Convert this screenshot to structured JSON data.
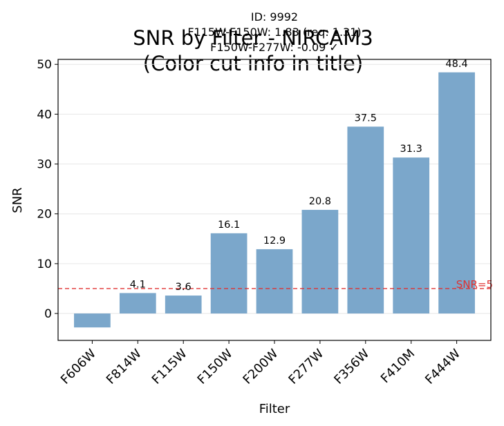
{
  "header": {
    "id_line": "ID: 9992",
    "cut_line_1": "F115W-F150W: 1.83 (req: 1.31)",
    "cut_line_2": "F150W-F277W: -0.09 ✓"
  },
  "chart_data": {
    "type": "bar",
    "title": "SNR by Filter - NIRCAM3\n(Color cut info in title)",
    "title_lines": [
      "SNR by Filter - NIRCAM3",
      "(Color cut info in title)"
    ],
    "xlabel": "Filter",
    "ylabel": "SNR",
    "categories": [
      "F606W",
      "F814W",
      "F115W",
      "F150W",
      "F200W",
      "F277W",
      "F356W",
      "F410M",
      "F444W"
    ],
    "values": [
      -2.8,
      4.1,
      3.6,
      16.1,
      12.9,
      20.8,
      37.5,
      31.3,
      48.4
    ],
    "value_labels": [
      "",
      "4.1",
      "3.6",
      "16.1",
      "12.9",
      "20.8",
      "37.5",
      "31.3",
      "48.4"
    ],
    "ylim": [
      -5.4,
      51.0
    ],
    "yticks": [
      0,
      10,
      20,
      30,
      40,
      50
    ],
    "grid": "y",
    "bar_color": "#7ba7cb",
    "threshold": {
      "value": 5,
      "label": "SNR=5",
      "color": "#e03030"
    }
  }
}
